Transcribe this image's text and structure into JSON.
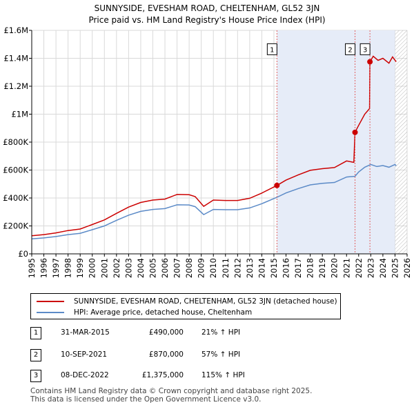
{
  "title": "SUNNYSIDE, EVESHAM ROAD, CHELTENHAM, GL52 3JN",
  "subtitle": "Price paid vs. HM Land Registry's House Price Index (HPI)",
  "colors": {
    "property": "#cc0000",
    "hpi": "#5b8ac7",
    "shade": "#e6ecf8",
    "grid": "#d9d9d9",
    "vline": "#e06060"
  },
  "chart_data": {
    "type": "line",
    "x_range": [
      1995,
      2026
    ],
    "y_range": [
      0,
      1600000
    ],
    "y_ticks": [
      {
        "value": 0,
        "label": "£0"
      },
      {
        "value": 200000,
        "label": "£200K"
      },
      {
        "value": 400000,
        "label": "£400K"
      },
      {
        "value": 600000,
        "label": "£600K"
      },
      {
        "value": 800000,
        "label": "£800K"
      },
      {
        "value": 1000000,
        "label": "£1M"
      },
      {
        "value": 1200000,
        "label": "£1.2M"
      },
      {
        "value": 1400000,
        "label": "£1.4M"
      },
      {
        "value": 1600000,
        "label": "£1.6M"
      }
    ],
    "x_ticks": [
      "1995",
      "1996",
      "1997",
      "1998",
      "1999",
      "2000",
      "2001",
      "2002",
      "2003",
      "2004",
      "2005",
      "2006",
      "2007",
      "2008",
      "2009",
      "2010",
      "2011",
      "2012",
      "2013",
      "2014",
      "2015",
      "2016",
      "2017",
      "2018",
      "2019",
      "2020",
      "2021",
      "2022",
      "2023",
      "2024",
      "2025",
      "2026"
    ],
    "shaded_region": [
      2015.25,
      2025.0
    ],
    "hatched_from": 2025.0,
    "series": [
      {
        "name": "SUNNYSIDE, EVESHAM ROAD, CHELTENHAM, GL52 3JN (detached house)",
        "points": [
          [
            1995.0,
            130000
          ],
          [
            1996.0,
            138000
          ],
          [
            1997.0,
            150000
          ],
          [
            1998.0,
            167000
          ],
          [
            1999.0,
            178000
          ],
          [
            2000.0,
            210000
          ],
          [
            2001.0,
            243000
          ],
          [
            2002.0,
            290000
          ],
          [
            2003.0,
            335000
          ],
          [
            2004.0,
            368000
          ],
          [
            2005.0,
            385000
          ],
          [
            2006.0,
            392000
          ],
          [
            2007.0,
            425000
          ],
          [
            2008.0,
            423000
          ],
          [
            2008.5,
            410000
          ],
          [
            2009.2,
            340000
          ],
          [
            2010.0,
            385000
          ],
          [
            2011.0,
            382000
          ],
          [
            2012.0,
            382000
          ],
          [
            2013.0,
            398000
          ],
          [
            2014.0,
            435000
          ],
          [
            2015.25,
            490000
          ],
          [
            2016.0,
            528000
          ],
          [
            2017.0,
            565000
          ],
          [
            2018.0,
            598000
          ],
          [
            2019.0,
            610000
          ],
          [
            2020.0,
            618000
          ],
          [
            2021.0,
            665000
          ],
          [
            2021.6,
            655000
          ],
          [
            2021.7,
            870000
          ],
          [
            2022.0,
            920000
          ],
          [
            2022.5,
            1000000
          ],
          [
            2022.9,
            1040000
          ],
          [
            2022.93,
            1375000
          ],
          [
            2023.2,
            1415000
          ],
          [
            2023.6,
            1385000
          ],
          [
            2024.0,
            1400000
          ],
          [
            2024.5,
            1365000
          ],
          [
            2024.8,
            1410000
          ],
          [
            2025.1,
            1375000
          ]
        ]
      },
      {
        "name": "HPI: Average price, detached house, Cheltenham",
        "points": [
          [
            1995.0,
            107000
          ],
          [
            1996.0,
            114000
          ],
          [
            1997.0,
            124000
          ],
          [
            1998.0,
            138000
          ],
          [
            1999.0,
            147000
          ],
          [
            2000.0,
            173000
          ],
          [
            2001.0,
            200000
          ],
          [
            2002.0,
            240000
          ],
          [
            2003.0,
            277000
          ],
          [
            2004.0,
            304000
          ],
          [
            2005.0,
            318000
          ],
          [
            2006.0,
            324000
          ],
          [
            2007.0,
            351000
          ],
          [
            2008.0,
            350000
          ],
          [
            2008.5,
            338000
          ],
          [
            2009.2,
            281000
          ],
          [
            2010.0,
            318000
          ],
          [
            2011.0,
            316000
          ],
          [
            2012.0,
            316000
          ],
          [
            2013.0,
            329000
          ],
          [
            2014.0,
            359000
          ],
          [
            2015.25,
            405000
          ],
          [
            2016.0,
            436000
          ],
          [
            2017.0,
            467000
          ],
          [
            2018.0,
            494000
          ],
          [
            2019.0,
            505000
          ],
          [
            2020.0,
            511000
          ],
          [
            2021.0,
            550000
          ],
          [
            2021.7,
            555000
          ],
          [
            2022.0,
            586000
          ],
          [
            2022.5,
            620000
          ],
          [
            2023.0,
            640000
          ],
          [
            2023.5,
            625000
          ],
          [
            2024.0,
            632000
          ],
          [
            2024.5,
            620000
          ],
          [
            2025.0,
            640000
          ],
          [
            2025.1,
            630000
          ]
        ]
      }
    ],
    "sales": [
      {
        "num": "1",
        "x": 2015.25,
        "price": 490000
      },
      {
        "num": "2",
        "x": 2021.7,
        "price": 870000
      },
      {
        "num": "3",
        "x": 2022.93,
        "price": 1375000
      }
    ],
    "marker_label_y": 1460000
  },
  "legend": {
    "property": "SUNNYSIDE, EVESHAM ROAD, CHELTENHAM, GL52 3JN (detached house)",
    "hpi": "HPI: Average price, detached house, Cheltenham"
  },
  "sales_table": [
    {
      "num": "1",
      "date": "31-MAR-2015",
      "price": "£490,000",
      "delta": "21% ↑ HPI"
    },
    {
      "num": "2",
      "date": "10-SEP-2021",
      "price": "£870,000",
      "delta": "57% ↑ HPI"
    },
    {
      "num": "3",
      "date": "08-DEC-2022",
      "price": "£1,375,000",
      "delta": "115% ↑ HPI"
    }
  ],
  "footer": {
    "line1": "Contains HM Land Registry data © Crown copyright and database right 2025.",
    "line2": "This data is licensed under the Open Government Licence v3.0."
  }
}
